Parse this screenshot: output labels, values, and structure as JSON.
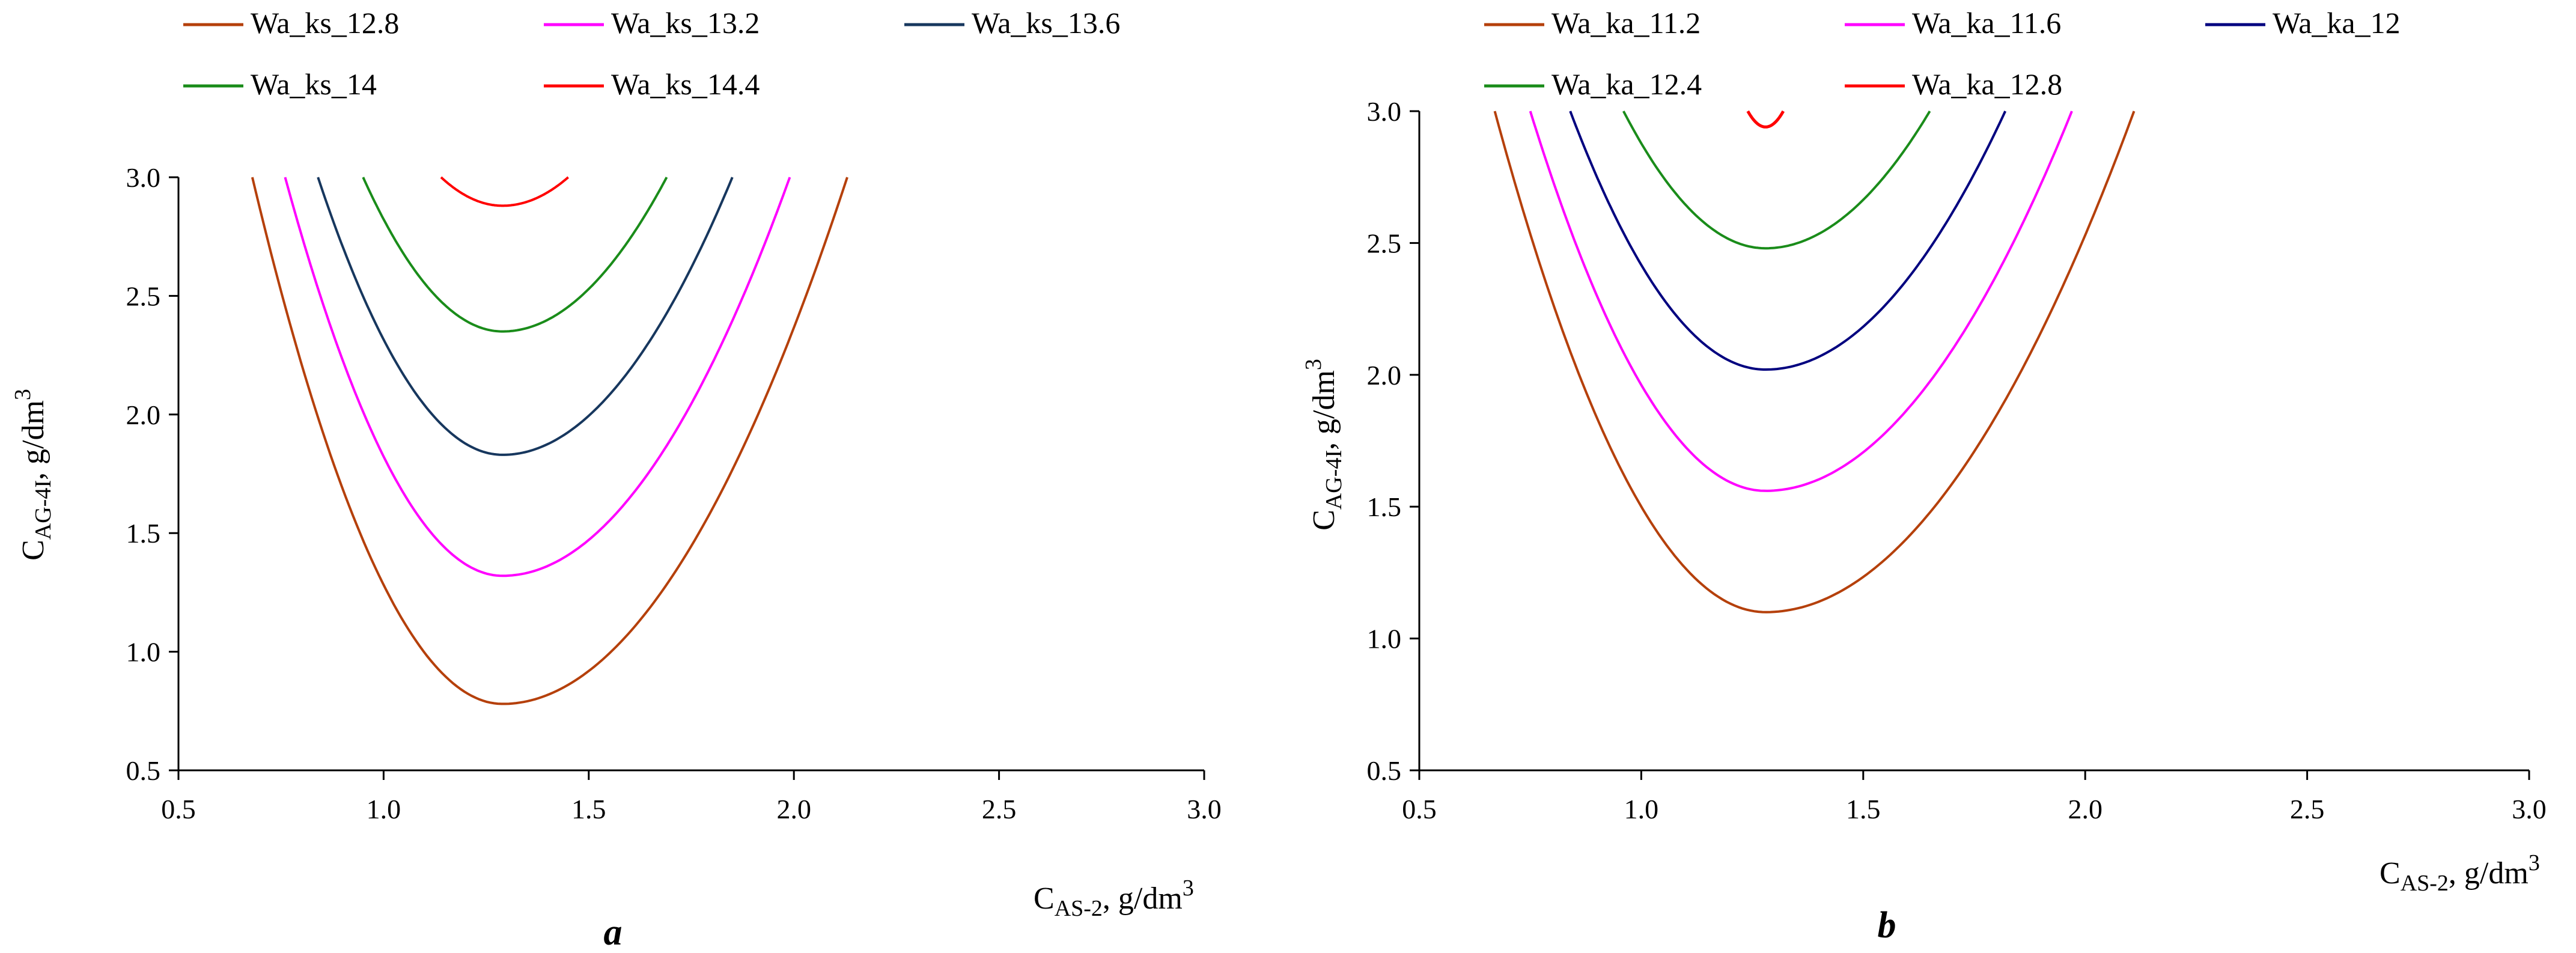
{
  "chart_data": [
    {
      "type": "line",
      "panel_label": "a",
      "xlabel": {
        "main": "C",
        "sub": "AS-2",
        "rest": ", g/dm",
        "sup": "3"
      },
      "ylabel": {
        "main": "C",
        "sub": "AG-4I",
        "rest": ", g/dm",
        "sup": "3"
      },
      "xlim": [
        0.5,
        3.0
      ],
      "ylim": [
        0.5,
        3.0
      ],
      "xticks": [
        "0.5",
        "1.0",
        "1.5",
        "2.0",
        "2.5",
        "3.0"
      ],
      "yticks": [
        "0.5",
        "1.0",
        "1.5",
        "2.0",
        "2.5",
        "3.0"
      ],
      "grid": false,
      "legend_position": "top",
      "series": [
        {
          "name": "Wa_ks_12.8",
          "color": "#B5400B",
          "vertex": [
            1.29,
            0.78
          ],
          "x_range": [
            0.68,
            2.13
          ]
        },
        {
          "name": "Wa_ks_13.2",
          "color": "#FF00FF",
          "vertex": [
            1.29,
            1.32
          ],
          "x_range": [
            0.76,
            1.99
          ]
        },
        {
          "name": "Wa_ks_13.6",
          "color": "#17375E",
          "vertex": [
            1.29,
            1.83
          ],
          "x_range": [
            0.84,
            1.85
          ]
        },
        {
          "name": "Wa_ks_14",
          "color": "#1A8C1A",
          "vertex": [
            1.29,
            2.35
          ],
          "x_range": [
            0.95,
            1.69
          ]
        },
        {
          "name": "Wa_ks_14.4",
          "color": "#FF0000",
          "vertex": [
            1.29,
            2.88
          ],
          "x_range": [
            1.14,
            1.45
          ]
        }
      ]
    },
    {
      "type": "line",
      "panel_label": "b",
      "xlabel": {
        "main": "C",
        "sub": "AS-2",
        "rest": ", g/dm",
        "sup": "3"
      },
      "ylabel": {
        "main": "C",
        "sub": "AG-4I",
        "rest": ", g/dm",
        "sup": "3"
      },
      "xlim": [
        0.5,
        3.0
      ],
      "ylim": [
        0.5,
        3.0
      ],
      "xticks": [
        "0.5",
        "1.0",
        "1.5",
        "2.0",
        "2.5",
        "3.0"
      ],
      "yticks": [
        "0.5",
        "1.0",
        "1.5",
        "2.0",
        "2.5",
        "3.0"
      ],
      "grid": false,
      "legend_position": "top",
      "series": [
        {
          "name": "Wa_ka_11.2",
          "color": "#B5400B",
          "vertex": [
            1.28,
            1.1
          ],
          "x_range": [
            0.67,
            2.11
          ]
        },
        {
          "name": "Wa_ka_11.6",
          "color": "#FF00FF",
          "vertex": [
            1.28,
            1.56
          ],
          "x_range": [
            0.75,
            1.97
          ]
        },
        {
          "name": "Wa_ka_12",
          "color": "#00007F",
          "vertex": [
            1.28,
            2.02
          ],
          "x_range": [
            0.84,
            1.82
          ]
        },
        {
          "name": "Wa_ka_12.4",
          "color": "#1A8C1A",
          "vertex": [
            1.28,
            2.48
          ],
          "x_range": [
            0.96,
            1.65
          ]
        },
        {
          "name": "Wa_ka_12.8",
          "color": "#FF0000",
          "vertex": [
            1.28,
            2.94
          ],
          "x_range": [
            1.24,
            1.32
          ]
        }
      ]
    }
  ]
}
